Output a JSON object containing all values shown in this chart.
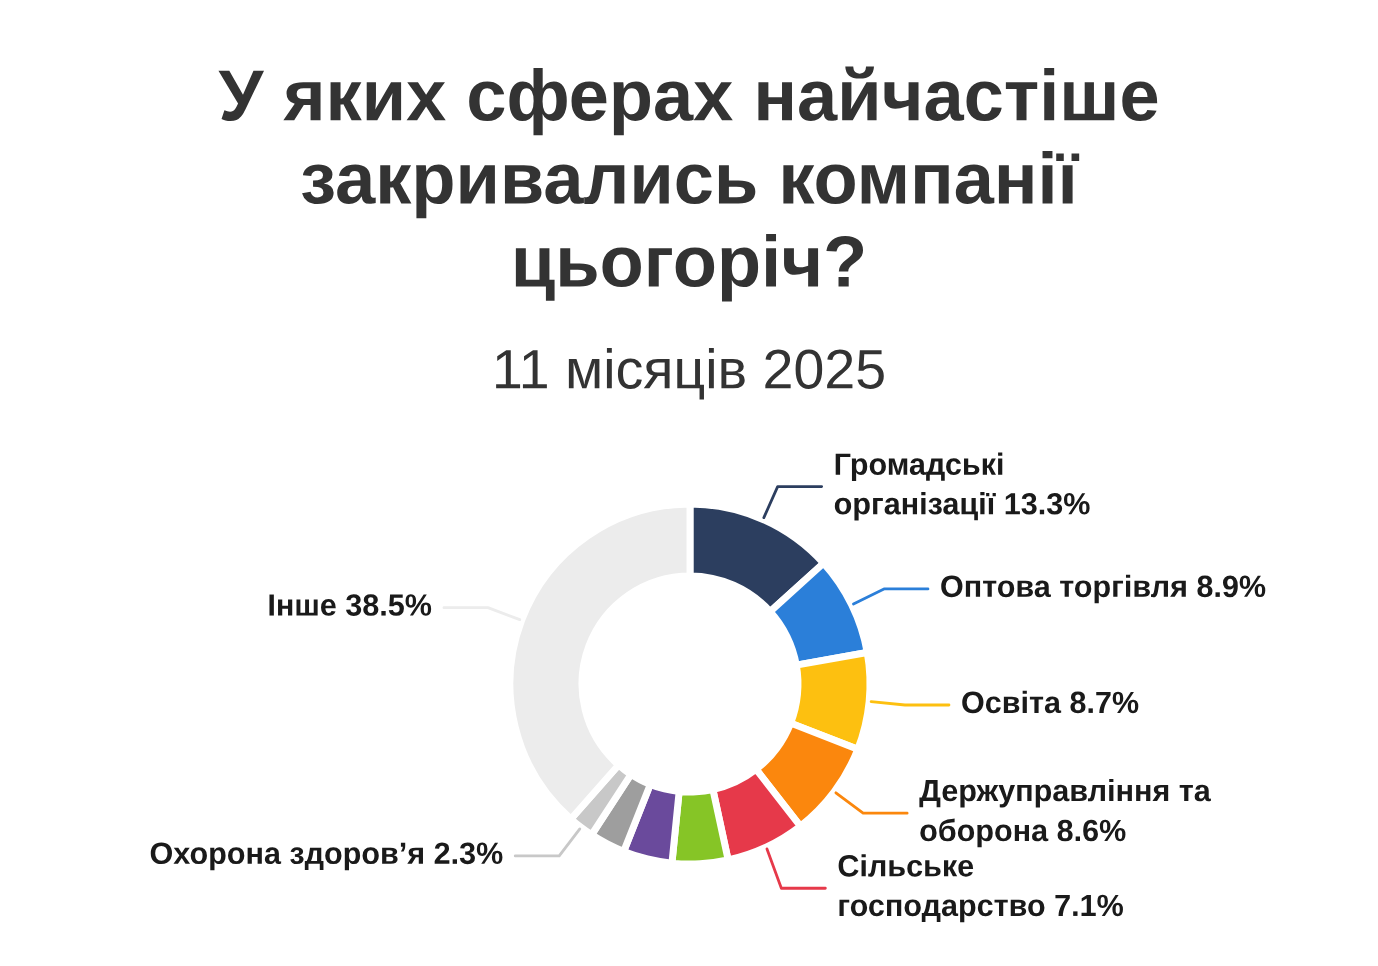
{
  "chart_data": {
    "type": "donut",
    "title": "У яких сферах найчастіше\nзакривались компанії\nцьогоріч?",
    "subtitle": "11 місяців 2025",
    "categories": [
      "Громадські\nорганізації",
      "Оптова торгівля",
      "Освіта",
      "Держуправління та\nоборона",
      "Сільське\nгосподарство",
      null,
      null,
      null,
      "Охорона здоров’я",
      "Інше"
    ],
    "values": [
      13.3,
      8.9,
      8.7,
      8.6,
      7.1,
      5.0,
      4.4,
      3.2,
      2.3,
      38.5
    ],
    "value_labels": [
      "13.3%",
      "8.9%",
      "8.7%",
      "8.6%",
      "7.1%",
      null,
      null,
      null,
      "2.3%",
      "38.5%"
    ],
    "colors": [
      "#2c3e5f",
      "#2b7fd9",
      "#fdc010",
      "#fb870d",
      "#e6394a",
      "#86c526",
      "#6a4a9c",
      "#9e9e9e",
      "#c8c8c8",
      "#ececec"
    ]
  }
}
